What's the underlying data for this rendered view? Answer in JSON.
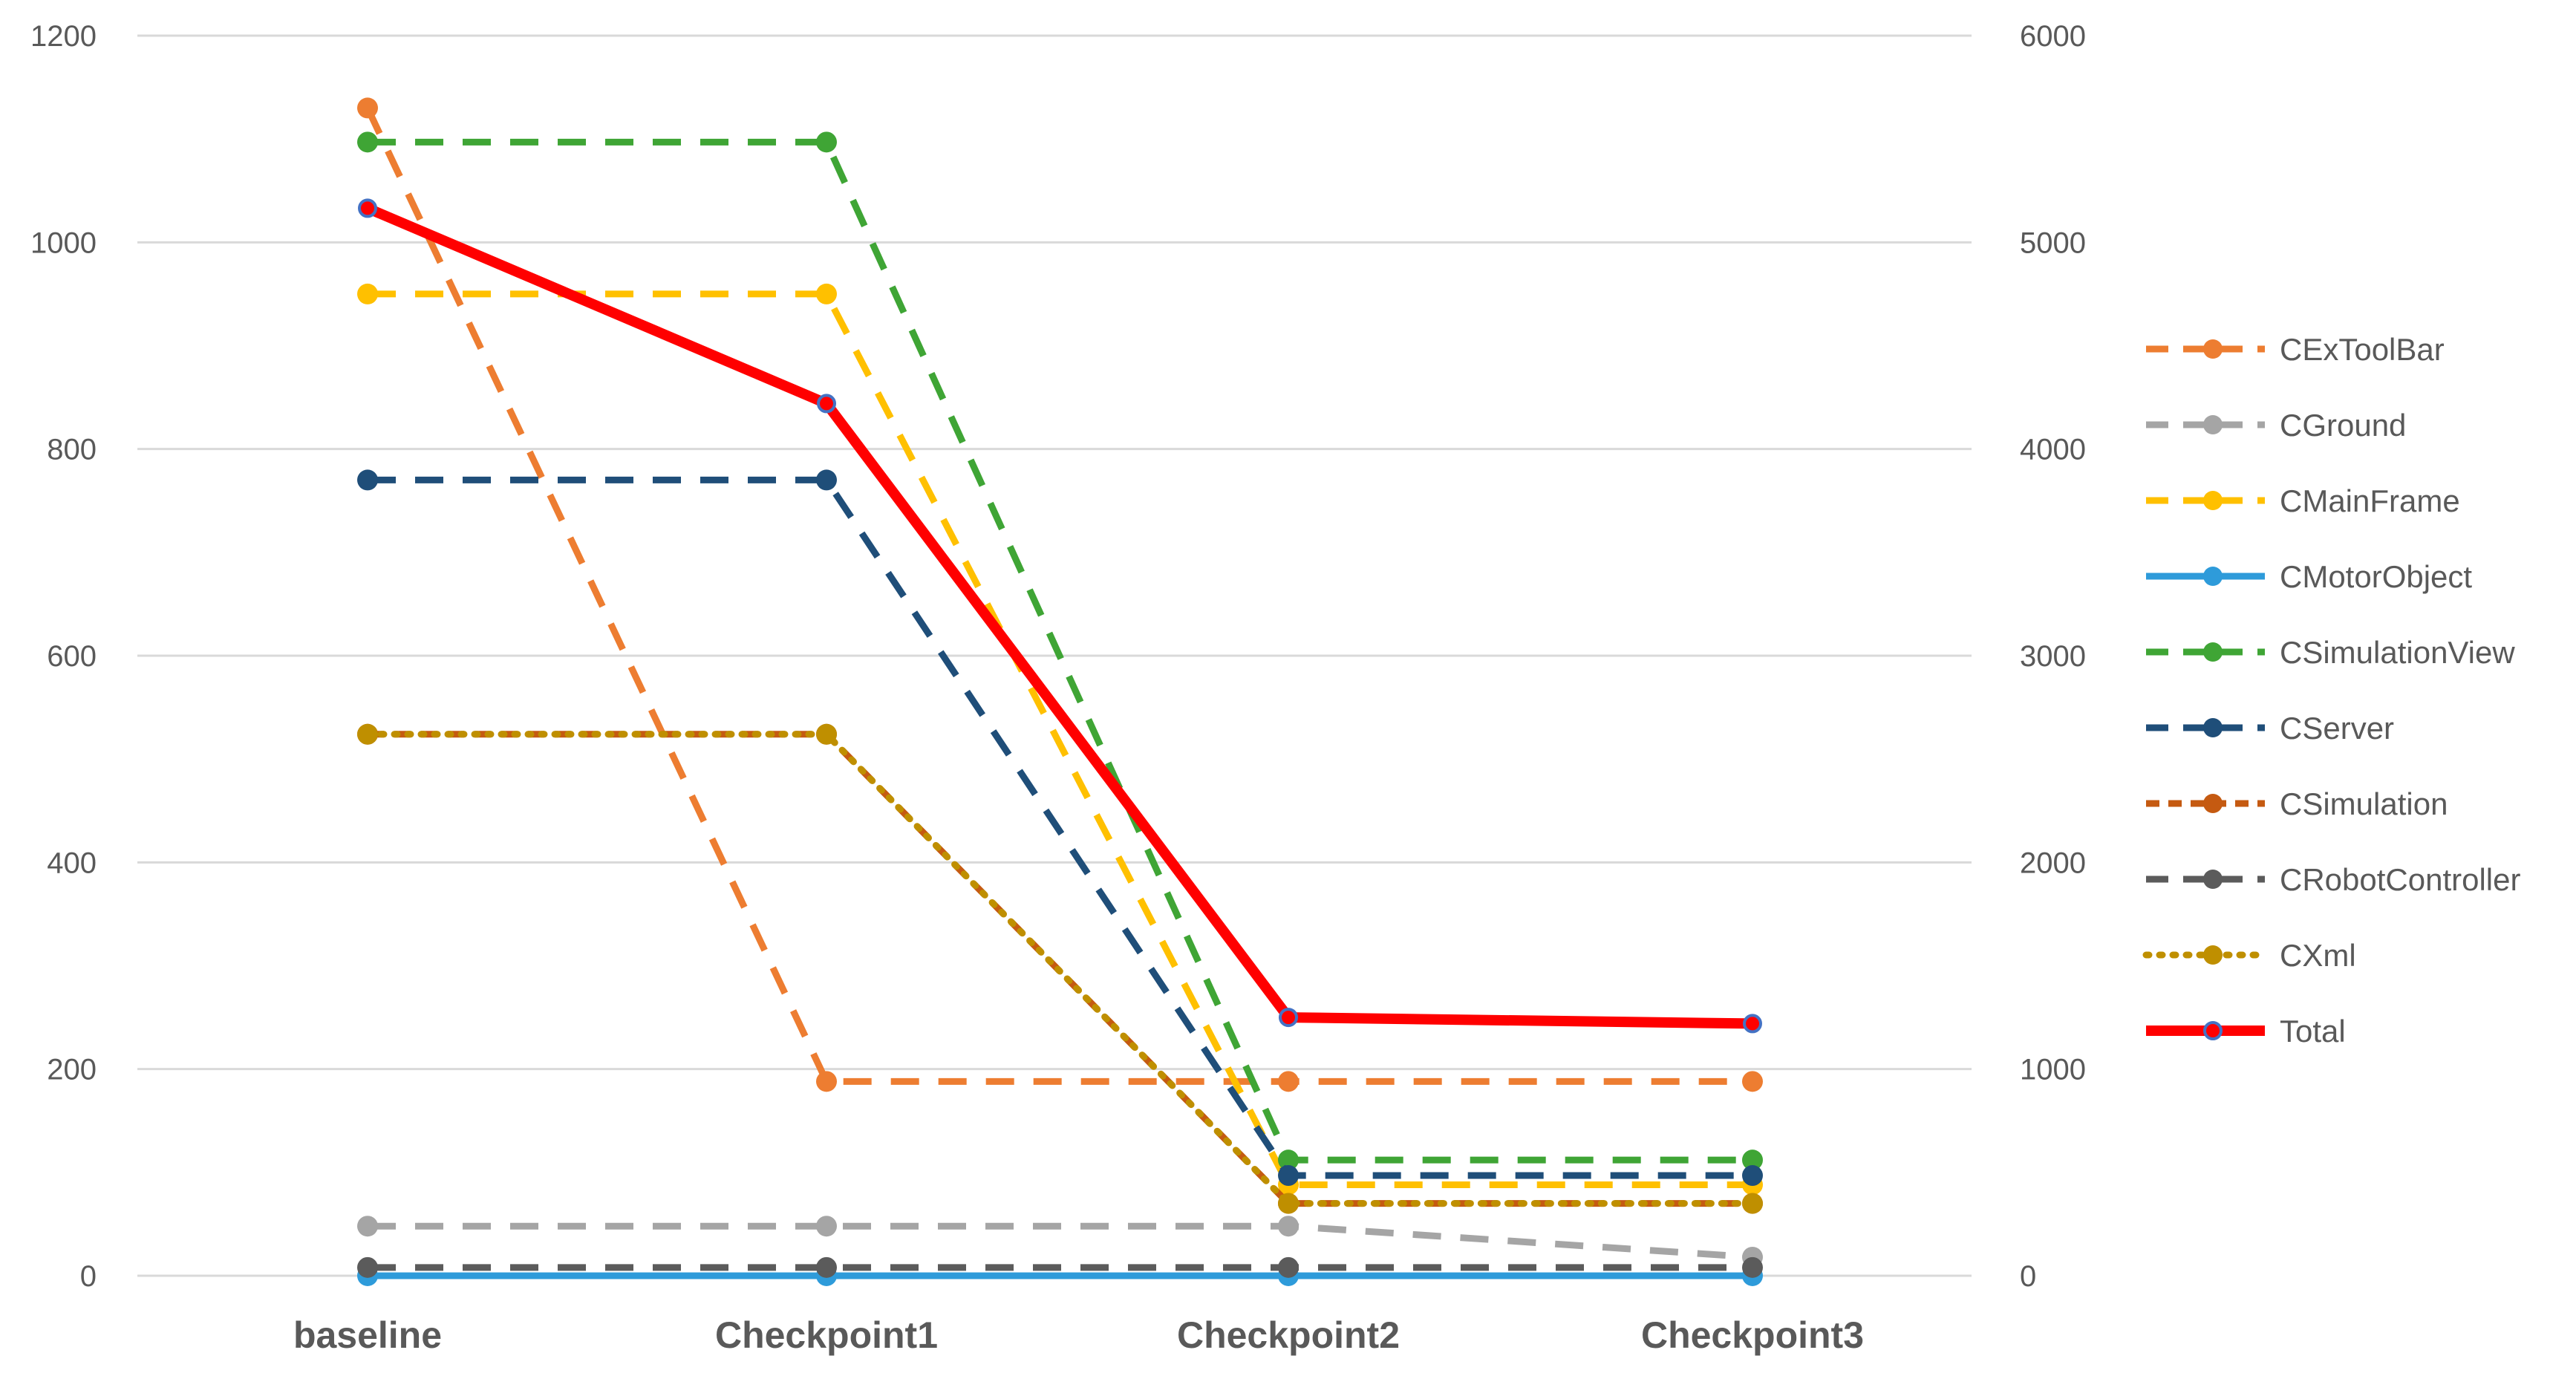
{
  "chart_data": {
    "type": "line",
    "categories": [
      "baseline",
      "Checkpoint1",
      "Checkpoint2",
      "Checkpoint3"
    ],
    "y_left": {
      "min": 0,
      "max": 1200,
      "step": 200,
      "ticks": [
        "0",
        "200",
        "400",
        "600",
        "800",
        "1000",
        "1200"
      ]
    },
    "y_right": {
      "min": 0,
      "max": 6000,
      "step": 1000,
      "ticks": [
        "0",
        "1000",
        "2000",
        "3000",
        "4000",
        "5000",
        "6000"
      ]
    },
    "grid": true,
    "legend_position": "right",
    "series": [
      {
        "name": "CExToolBar",
        "axis": "left",
        "color": "#ED7D31",
        "dash": "long",
        "values": [
          1130,
          188,
          188,
          188
        ]
      },
      {
        "name": "CGround",
        "axis": "left",
        "color": "#A5A5A5",
        "dash": "long",
        "values": [
          48,
          48,
          48,
          18
        ]
      },
      {
        "name": "CMainFrame",
        "axis": "left",
        "color": "#FFC000",
        "dash": "long",
        "values": [
          950,
          950,
          88,
          88
        ]
      },
      {
        "name": "CMotorObject",
        "axis": "left",
        "color": "#2E9BDA",
        "dash": "solid",
        "values": [
          0,
          0,
          0,
          0
        ]
      },
      {
        "name": "CSimulationView",
        "axis": "left",
        "color": "#3FA535",
        "dash": "long",
        "values": [
          1097,
          1097,
          112,
          112
        ]
      },
      {
        "name": "CServer",
        "axis": "left",
        "color": "#1F4E79",
        "dash": "long",
        "values": [
          770,
          770,
          97,
          97
        ]
      },
      {
        "name": "CSimulation",
        "axis": "left",
        "color": "#C55A11",
        "dash": "short",
        "values": [
          524,
          524,
          70,
          70
        ]
      },
      {
        "name": "CRobotController",
        "axis": "left",
        "color": "#5B5B5B",
        "dash": "long",
        "values": [
          8,
          8,
          8,
          8
        ]
      },
      {
        "name": "CXml",
        "axis": "left",
        "color": "#BF8F00",
        "dash": "dot",
        "values": [
          524,
          524,
          70,
          70
        ]
      },
      {
        "name": "Total",
        "axis": "right",
        "color": "#FF0000",
        "dash": "solid",
        "values": [
          5165,
          4220,
          1250,
          1220
        ]
      }
    ]
  }
}
